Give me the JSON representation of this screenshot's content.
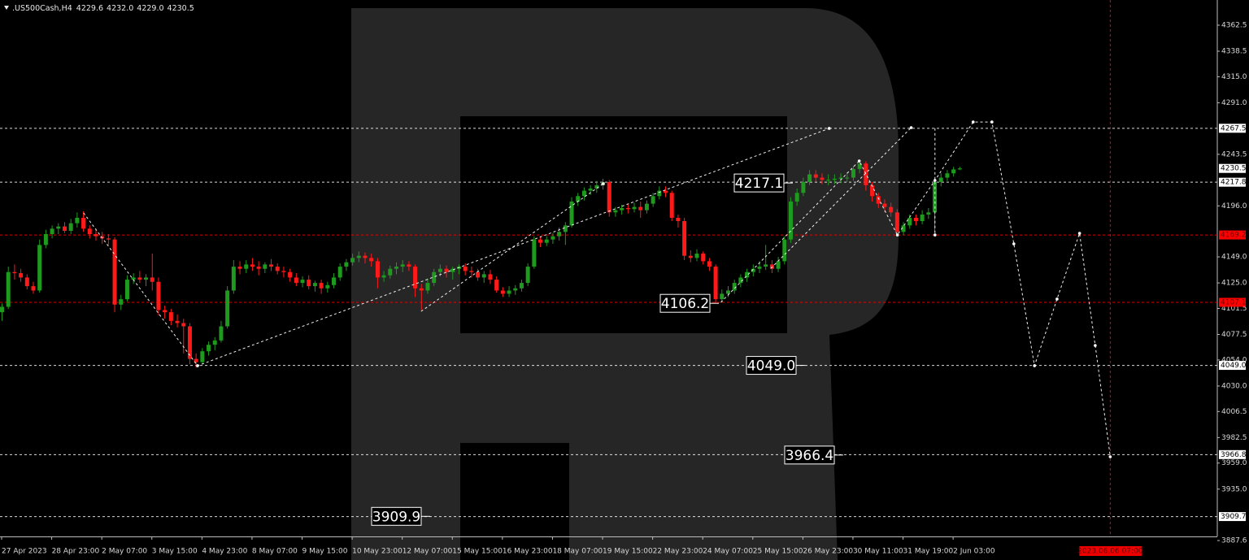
{
  "chart_data": {
    "type": "candlestick",
    "title": ".US500Cash,H4",
    "last_bar_labels": [
      "4229.6",
      "4232.0",
      "4229.0",
      "4230.5"
    ],
    "colors": {
      "up": "#1e9a1e",
      "down": "#ff1a1a"
    },
    "ohlc": [
      [
        4098,
        4106,
        4090,
        4103
      ],
      [
        4103,
        4140,
        4101,
        4135
      ],
      [
        4135,
        4142,
        4128,
        4134
      ],
      [
        4134,
        4138,
        4126,
        4130
      ],
      [
        4130,
        4133,
        4119,
        4122
      ],
      [
        4122,
        4126,
        4115,
        4118
      ],
      [
        4118,
        4165,
        4116,
        4160
      ],
      [
        4160,
        4174,
        4157,
        4170
      ],
      [
        4170,
        4178,
        4166,
        4175
      ],
      [
        4175,
        4180,
        4170,
        4177
      ],
      [
        4177,
        4181,
        4171,
        4173
      ],
      [
        4173,
        4184,
        4170,
        4180
      ],
      [
        4180,
        4190,
        4176,
        4185
      ],
      [
        4185,
        4191,
        4172,
        4175
      ],
      [
        4175,
        4178,
        4166,
        4170
      ],
      [
        4170,
        4175,
        4164,
        4168
      ],
      [
        4168,
        4172,
        4161,
        4166
      ],
      [
        4166,
        4170,
        4160,
        4165
      ],
      [
        4165,
        4167,
        4098,
        4105
      ],
      [
        4105,
        4114,
        4100,
        4110
      ],
      [
        4110,
        4132,
        4108,
        4128
      ],
      [
        4128,
        4134,
        4124,
        4130
      ],
      [
        4130,
        4136,
        4125,
        4128
      ],
      [
        4128,
        4133,
        4122,
        4130
      ],
      [
        4130,
        4152,
        4118,
        4126
      ],
      [
        4126,
        4130,
        4095,
        4100
      ],
      [
        4100,
        4104,
        4092,
        4098
      ],
      [
        4098,
        4101,
        4086,
        4090
      ],
      [
        4090,
        4096,
        4084,
        4088
      ],
      [
        4088,
        4092,
        4060,
        4085
      ],
      [
        4085,
        4088,
        4050,
        4055
      ],
      [
        4055,
        4060,
        4047,
        4052
      ],
      [
        4052,
        4065,
        4050,
        4062
      ],
      [
        4062,
        4071,
        4058,
        4068
      ],
      [
        4068,
        4075,
        4063,
        4072
      ],
      [
        4072,
        4090,
        4070,
        4085
      ],
      [
        4085,
        4122,
        4083,
        4118
      ],
      [
        4118,
        4146,
        4115,
        4140
      ],
      [
        4140,
        4145,
        4133,
        4138
      ],
      [
        4138,
        4146,
        4134,
        4142
      ],
      [
        4142,
        4148,
        4136,
        4140
      ],
      [
        4140,
        4145,
        4132,
        4138
      ],
      [
        4138,
        4144,
        4134,
        4142
      ],
      [
        4142,
        4147,
        4136,
        4140
      ],
      [
        4140,
        4143,
        4133,
        4136
      ],
      [
        4136,
        4140,
        4130,
        4135
      ],
      [
        4135,
        4138,
        4126,
        4130
      ],
      [
        4130,
        4134,
        4122,
        4125
      ],
      [
        4125,
        4131,
        4121,
        4128
      ],
      [
        4128,
        4132,
        4119,
        4122
      ],
      [
        4122,
        4127,
        4117,
        4125
      ],
      [
        4125,
        4128,
        4115,
        4120
      ],
      [
        4120,
        4126,
        4116,
        4123
      ],
      [
        4123,
        4134,
        4120,
        4130
      ],
      [
        4130,
        4143,
        4127,
        4140
      ],
      [
        4140,
        4147,
        4136,
        4144
      ],
      [
        4144,
        4152,
        4141,
        4148
      ],
      [
        4148,
        4154,
        4144,
        4150
      ],
      [
        4150,
        4153,
        4143,
        4148
      ],
      [
        4148,
        4152,
        4140,
        4145
      ],
      [
        4145,
        4148,
        4120,
        4130
      ],
      [
        4130,
        4136,
        4126,
        4132
      ],
      [
        4132,
        4141,
        4129,
        4138
      ],
      [
        4138,
        4144,
        4133,
        4140
      ],
      [
        4140,
        4146,
        4135,
        4142
      ],
      [
        4142,
        4145,
        4136,
        4140
      ],
      [
        4140,
        4142,
        4112,
        4120
      ],
      [
        4120,
        4124,
        4100,
        4118
      ],
      [
        4118,
        4129,
        4115,
        4125
      ],
      [
        4125,
        4138,
        4122,
        4135
      ],
      [
        4135,
        4142,
        4131,
        4138
      ],
      [
        4138,
        4141,
        4130,
        4135
      ],
      [
        4135,
        4140,
        4128,
        4138
      ],
      [
        4138,
        4142,
        4133,
        4140
      ],
      [
        4140,
        4143,
        4132,
        4136
      ],
      [
        4136,
        4140,
        4130,
        4135
      ],
      [
        4135,
        4138,
        4127,
        4130
      ],
      [
        4130,
        4136,
        4125,
        4133
      ],
      [
        4133,
        4137,
        4124,
        4128
      ],
      [
        4128,
        4131,
        4116,
        4118
      ],
      [
        4118,
        4121,
        4112,
        4115
      ],
      [
        4115,
        4122,
        4112,
        4118
      ],
      [
        4118,
        4123,
        4114,
        4120
      ],
      [
        4120,
        4128,
        4117,
        4125
      ],
      [
        4125,
        4143,
        4122,
        4140
      ],
      [
        4140,
        4168,
        4138,
        4165
      ],
      [
        4165,
        4168,
        4158,
        4162
      ],
      [
        4162,
        4168,
        4159,
        4165
      ],
      [
        4165,
        4171,
        4161,
        4168
      ],
      [
        4168,
        4176,
        4164,
        4172
      ],
      [
        4172,
        4181,
        4160,
        4178
      ],
      [
        4178,
        4204,
        4176,
        4200
      ],
      [
        4200,
        4208,
        4196,
        4205
      ],
      [
        4205,
        4213,
        4201,
        4210
      ],
      [
        4210,
        4215,
        4206,
        4212
      ],
      [
        4212,
        4219,
        4208,
        4215
      ],
      [
        4215,
        4221,
        4211,
        4218
      ],
      [
        4218,
        4220,
        4186,
        4190
      ],
      [
        4190,
        4195,
        4186,
        4192
      ],
      [
        4192,
        4197,
        4188,
        4194
      ],
      [
        4194,
        4198,
        4189,
        4193
      ],
      [
        4193,
        4199,
        4190,
        4195
      ],
      [
        4195,
        4200,
        4185,
        4192
      ],
      [
        4192,
        4201,
        4189,
        4198
      ],
      [
        4198,
        4208,
        4195,
        4205
      ],
      [
        4205,
        4214,
        4202,
        4210
      ],
      [
        4210,
        4214,
        4204,
        4208
      ],
      [
        4208,
        4210,
        4182,
        4185
      ],
      [
        4185,
        4188,
        4176,
        4182
      ],
      [
        4182,
        4185,
        4146,
        4150
      ],
      [
        4150,
        4155,
        4144,
        4148
      ],
      [
        4148,
        4156,
        4145,
        4152
      ],
      [
        4152,
        4154,
        4142,
        4145
      ],
      [
        4145,
        4148,
        4136,
        4140
      ],
      [
        4140,
        4142,
        4106,
        4110
      ],
      [
        4110,
        4119,
        4107,
        4115
      ],
      [
        4115,
        4122,
        4112,
        4118
      ],
      [
        4118,
        4128,
        4115,
        4125
      ],
      [
        4125,
        4133,
        4121,
        4130
      ],
      [
        4130,
        4138,
        4126,
        4135
      ],
      [
        4135,
        4142,
        4131,
        4138
      ],
      [
        4138,
        4145,
        4134,
        4140
      ],
      [
        4140,
        4160,
        4137,
        4142
      ],
      [
        4142,
        4146,
        4134,
        4138
      ],
      [
        4138,
        4149,
        4135,
        4145
      ],
      [
        4145,
        4168,
        4142,
        4165
      ],
      [
        4165,
        4204,
        4162,
        4200
      ],
      [
        4200,
        4212,
        4196,
        4208
      ],
      [
        4208,
        4222,
        4205,
        4218
      ],
      [
        4218,
        4229,
        4215,
        4225
      ],
      [
        4225,
        4229,
        4218,
        4222
      ],
      [
        4222,
        4226,
        4216,
        4220
      ],
      [
        4220,
        4225,
        4215,
        4220
      ],
      [
        4220,
        4225,
        4216,
        4221
      ],
      [
        4221,
        4226,
        4217,
        4222
      ],
      [
        4222,
        4227,
        4218,
        4222
      ],
      [
        4222,
        4233,
        4219,
        4230
      ],
      [
        4230,
        4238,
        4226,
        4235
      ],
      [
        4235,
        4237,
        4210,
        4215
      ],
      [
        4215,
        4218,
        4200,
        4205
      ],
      [
        4205,
        4208,
        4194,
        4198
      ],
      [
        4198,
        4202,
        4190,
        4195
      ],
      [
        4195,
        4199,
        4186,
        4190
      ],
      [
        4190,
        4193,
        4168,
        4172
      ],
      [
        4172,
        4181,
        4169,
        4178
      ],
      [
        4178,
        4188,
        4175,
        4185
      ],
      [
        4185,
        4188,
        4178,
        4182
      ],
      [
        4182,
        4192,
        4179,
        4188
      ],
      [
        4188,
        4194,
        4184,
        4190
      ],
      [
        4190,
        4221,
        4172,
        4218
      ],
      [
        4218,
        4226,
        4214,
        4222
      ],
      [
        4222,
        4229,
        4219,
        4226
      ],
      [
        4226,
        4232,
        4223,
        4229.6
      ],
      [
        4229.6,
        4232.0,
        4229.0,
        4230.5
      ]
    ],
    "xlim": [
      -0.26,
      194.2
    ],
    "xticks": [
      {
        "value": 0,
        "label": "27 Apr 2023"
      },
      {
        "value": 8,
        "label": "28 Apr 23:00"
      },
      {
        "value": 16,
        "label": "2 May 07:00"
      },
      {
        "value": 24,
        "label": "3 May 15:00"
      },
      {
        "value": 32,
        "label": "4 May 23:00"
      },
      {
        "value": 40,
        "label": "8 May 07:00"
      },
      {
        "value": 48,
        "label": "9 May 15:00"
      },
      {
        "value": 56,
        "label": "10 May 23:00"
      },
      {
        "value": 64,
        "label": "12 May 07:00"
      },
      {
        "value": 72,
        "label": "15 May 15:00"
      },
      {
        "value": 80,
        "label": "16 May 23:00"
      },
      {
        "value": 88,
        "label": "18 May 07:00"
      },
      {
        "value": 96,
        "label": "19 May 15:00"
      },
      {
        "value": 104,
        "label": "22 May 23:00"
      },
      {
        "value": 112,
        "label": "24 May 07:00"
      },
      {
        "value": 120,
        "label": "25 May 15:00"
      },
      {
        "value": 128,
        "label": "26 May 23:00"
      },
      {
        "value": 136,
        "label": "30 May 11:00"
      },
      {
        "value": 144,
        "label": "31 May 19:00"
      },
      {
        "value": 152,
        "label": "2 Jun 03:00"
      }
    ],
    "ylim": [
      3891.4,
      4385.7
    ],
    "yticks": [
      {
        "value": 4362.5,
        "label": "4362.5"
      },
      {
        "value": 4338.5,
        "label": "4338.5"
      },
      {
        "value": 4315,
        "label": "4315.0"
      },
      {
        "value": 4291,
        "label": "4291.0"
      },
      {
        "value": 4243.5,
        "label": "4243.5"
      },
      {
        "value": 4196,
        "label": "4196.0"
      },
      {
        "value": 4149,
        "label": "4149.0"
      },
      {
        "value": 4125,
        "label": "4125.0"
      },
      {
        "value": 4101.5,
        "label": "4101.5"
      },
      {
        "value": 4077.5,
        "label": "4077.5"
      },
      {
        "value": 4054,
        "label": "4054.0"
      },
      {
        "value": 4030,
        "label": "4030.0"
      },
      {
        "value": 4006.5,
        "label": "4006.5"
      },
      {
        "value": 3982.5,
        "label": "3982.5"
      },
      {
        "value": 3959,
        "label": "3959.0"
      },
      {
        "value": 3935,
        "label": "3935.0"
      },
      {
        "value": 3887.6,
        "label": "3887.6"
      }
    ],
    "levels": [
      {
        "value": 4267.5,
        "label": "4267.5",
        "color": "#ffffff",
        "line": true
      },
      {
        "value": 4230.5,
        "label": "4230.5",
        "color": "#ffffff",
        "line": false
      },
      {
        "value": 4217.8,
        "label": "4217.8",
        "color": "#ffffff",
        "line": true
      },
      {
        "value": 4169.2,
        "label": "4169.2",
        "color": "#ff0000",
        "line": true
      },
      {
        "value": 4107.1,
        "label": "4107.1",
        "color": "#ff0000",
        "line": true
      },
      {
        "value": 4049.0,
        "label": "4049.0",
        "color": "#ffffff",
        "line": true
      },
      {
        "value": 3966.8,
        "label": "3966.8",
        "color": "#ffffff",
        "line": true
      },
      {
        "value": 3909.7,
        "label": "3909.7",
        "color": "#ffffff",
        "line": true
      }
    ],
    "annotations": [
      {
        "value": 4217.1,
        "label": "4217.1"
      },
      {
        "value": 4106.2,
        "label": "4106.2"
      },
      {
        "value": 4049.0,
        "label": "4049.0"
      },
      {
        "value": 3966.4,
        "label": "3966.4"
      },
      {
        "value": 3909.9,
        "label": "3909.9"
      }
    ],
    "wave_lines": [
      [
        [
          13.1,
          4189.5
        ],
        [
          31.3,
          4048.7
        ],
        [
          132.2,
          4267.4
        ]
      ],
      [
        [
          67.0,
          4098.8
        ],
        [
          96.1,
          4216.4
        ]
      ],
      [
        [
          122.9,
          4138.5
        ],
        [
          145.3,
          4268.1
        ]
      ],
      [
        [
          149.1,
          4267.5
        ],
        [
          149.1,
          4169.2
        ]
      ],
      [
        [
          114.9,
          4107.1
        ],
        [
          137.0,
          4237.4
        ],
        [
          143.1,
          4169.2
        ],
        [
          149.1,
          4219.4
        ],
        [
          155.2,
          4273.3
        ],
        [
          158.2,
          4273.3
        ],
        [
          161.7,
          4161.0
        ],
        [
          165.0,
          4048.7
        ],
        [
          168.6,
          4110.1
        ],
        [
          172.2,
          4170.7
        ],
        [
          174.7,
          4067.4
        ],
        [
          177.1,
          3964.8
        ]
      ]
    ],
    "cursor": {
      "x": 177.1,
      "label": "2023.06.06 07:00"
    }
  }
}
